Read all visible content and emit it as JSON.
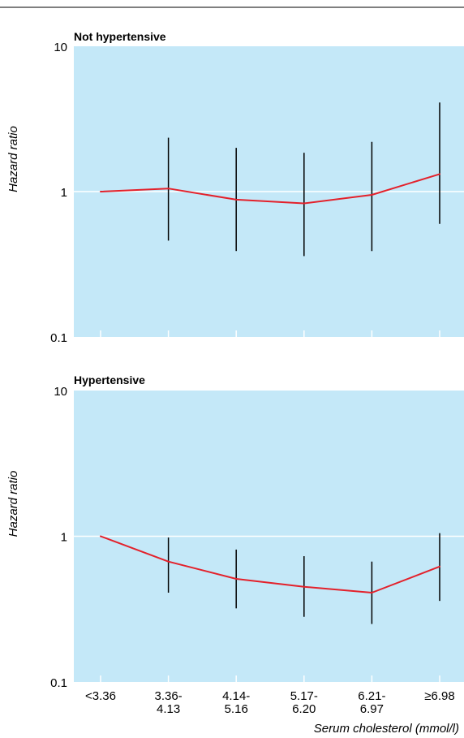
{
  "chart_data": [
    {
      "type": "line",
      "title": "Not hypertensive",
      "ylabel": "Hazard ratio",
      "xlabel": "",
      "yscale": "log",
      "ylim": [
        0.1,
        10
      ],
      "yticks": [
        "10",
        "1",
        "0.1"
      ],
      "grid": "reference line at 1",
      "categories": [
        "<3.36",
        "3.36-4.13",
        "4.14-5.16",
        "5.17-6.20",
        "6.21-6.97",
        "≥6.98"
      ],
      "series": [
        {
          "values": [
            1.0,
            1.05,
            0.88,
            0.83,
            0.95,
            1.32
          ],
          "ci_low": [
            null,
            0.46,
            0.39,
            0.36,
            0.39,
            0.6
          ],
          "ci_high": [
            null,
            2.35,
            2.0,
            1.85,
            2.2,
            4.1
          ]
        }
      ],
      "colors": {
        "line": "#e3212b",
        "error_bar": "#000000",
        "background": "#c4e8f8"
      }
    },
    {
      "type": "line",
      "title": "Hypertensive",
      "ylabel": "Hazard ratio",
      "xlabel": "Serum cholesterol (mmol/l)",
      "yscale": "log",
      "ylim": [
        0.1,
        10
      ],
      "yticks": [
        "10",
        "1",
        "0.1"
      ],
      "grid": "reference line at 1",
      "categories": [
        "<3.36",
        "3.36-4.13",
        "4.14-5.16",
        "5.17-6.20",
        "6.21-6.97",
        "≥6.98"
      ],
      "category_lines": [
        [
          "<3.36"
        ],
        [
          "3.36-",
          "4.13"
        ],
        [
          "4.14-",
          "5.16"
        ],
        [
          "5.17-",
          "6.20"
        ],
        [
          "6.21-",
          "6.97"
        ],
        [
          "≥6.98"
        ]
      ],
      "series": [
        {
          "values": [
            1.0,
            0.67,
            0.51,
            0.45,
            0.41,
            0.62
          ],
          "ci_low": [
            null,
            0.41,
            0.32,
            0.28,
            0.25,
            0.36
          ],
          "ci_high": [
            null,
            0.98,
            0.81,
            0.73,
            0.67,
            1.05
          ]
        }
      ],
      "colors": {
        "line": "#e3212b",
        "error_bar": "#000000",
        "background": "#c4e8f8"
      }
    }
  ]
}
